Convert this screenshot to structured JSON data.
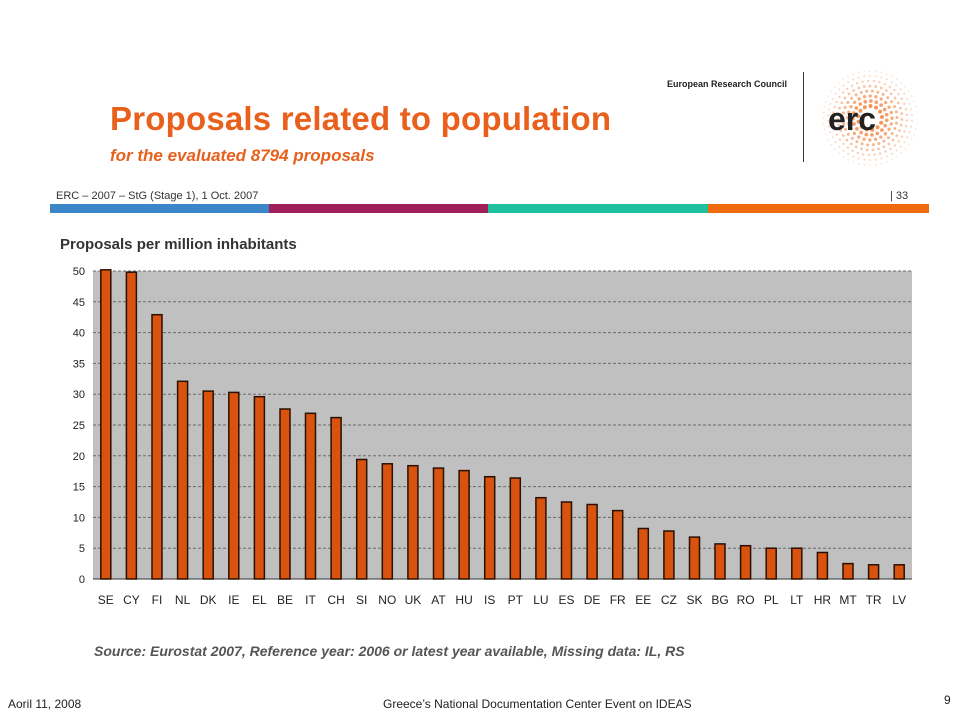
{
  "slide": {
    "title": "Proposals related to population",
    "subtitle": "for the evaluated 8794 proposals",
    "org_name": "European Research Council",
    "logo_text": "erc",
    "meta": "ERC – 2007 – StG (Stage 1), 1 Oct. 2007",
    "slide_number": "33",
    "color_bar": [
      "#3a86c8",
      "#a0205a",
      "#1ec0a0",
      "#f06a10"
    ],
    "source": "Source: Eurostat 2007, Reference year: 2006 or latest year available, Missing data: IL, RS",
    "footer_left": "Aoril 11, 2008",
    "footer_center": "Greece’s National Documentation Center Event on IDEAS",
    "footer_right": "9"
  },
  "chart_data": {
    "type": "bar",
    "title": "Proposals per million inhabitants",
    "categories": [
      "SE",
      "CY",
      "FI",
      "NL",
      "DK",
      "IE",
      "EL",
      "BE",
      "IT",
      "CH",
      "SI",
      "NO",
      "UK",
      "AT",
      "HU",
      "IS",
      "PT",
      "LU",
      "ES",
      "DE",
      "FR",
      "EE",
      "CZ",
      "SK",
      "BG",
      "RO",
      "PL",
      "LT",
      "HR",
      "MT",
      "TR",
      "LV"
    ],
    "values": [
      50.2,
      49.8,
      42.9,
      32.1,
      30.5,
      30.3,
      29.6,
      27.6,
      26.9,
      26.2,
      19.4,
      18.7,
      18.4,
      18.0,
      17.6,
      16.6,
      16.4,
      13.2,
      12.5,
      12.1,
      11.1,
      8.2,
      7.8,
      6.8,
      5.7,
      5.4,
      5.0,
      5.0,
      4.3,
      2.5,
      2.3,
      2.3
    ],
    "ylim": [
      0,
      50
    ],
    "yticks": [
      0,
      5,
      10,
      15,
      20,
      25,
      30,
      35,
      40,
      45,
      50
    ],
    "grid": true,
    "bar_color": "#d9530e",
    "plot_background": "#c0c0c0",
    "xlabel": "",
    "ylabel": ""
  }
}
